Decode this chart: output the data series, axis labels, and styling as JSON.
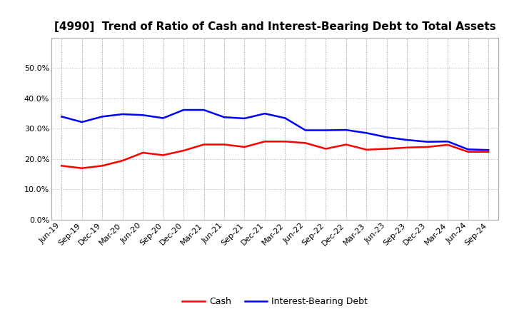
{
  "title": "[4990]  Trend of Ratio of Cash and Interest-Bearing Debt to Total Assets",
  "x_labels": [
    "Jun-19",
    "Sep-19",
    "Dec-19",
    "Mar-20",
    "Jun-20",
    "Sep-20",
    "Dec-20",
    "Mar-21",
    "Jun-21",
    "Sep-21",
    "Dec-21",
    "Mar-22",
    "Jun-22",
    "Sep-22",
    "Dec-22",
    "Mar-23",
    "Jun-23",
    "Sep-23",
    "Dec-23",
    "Mar-24",
    "Jun-24",
    "Sep-24"
  ],
  "cash": [
    0.178,
    0.17,
    0.178,
    0.195,
    0.221,
    0.213,
    0.228,
    0.248,
    0.248,
    0.24,
    0.258,
    0.258,
    0.253,
    0.234,
    0.248,
    0.231,
    0.234,
    0.238,
    0.24,
    0.247,
    0.224,
    0.224
  ],
  "interest_bearing_debt": [
    0.34,
    0.322,
    0.34,
    0.348,
    0.345,
    0.335,
    0.362,
    0.362,
    0.338,
    0.334,
    0.35,
    0.335,
    0.295,
    0.295,
    0.296,
    0.286,
    0.272,
    0.263,
    0.257,
    0.258,
    0.232,
    0.23
  ],
  "cash_color": "#ff0000",
  "debt_color": "#0000ff",
  "background_color": "#ffffff",
  "plot_bg_color": "#ffffff",
  "grid_color": "#aaaaaa",
  "ylim": [
    0.0,
    0.6
  ],
  "yticks": [
    0.0,
    0.1,
    0.2,
    0.3,
    0.4,
    0.5
  ],
  "legend_cash": "Cash",
  "legend_debt": "Interest-Bearing Debt",
  "title_fontsize": 11,
  "axis_fontsize": 8,
  "legend_fontsize": 9,
  "line_width": 1.8
}
